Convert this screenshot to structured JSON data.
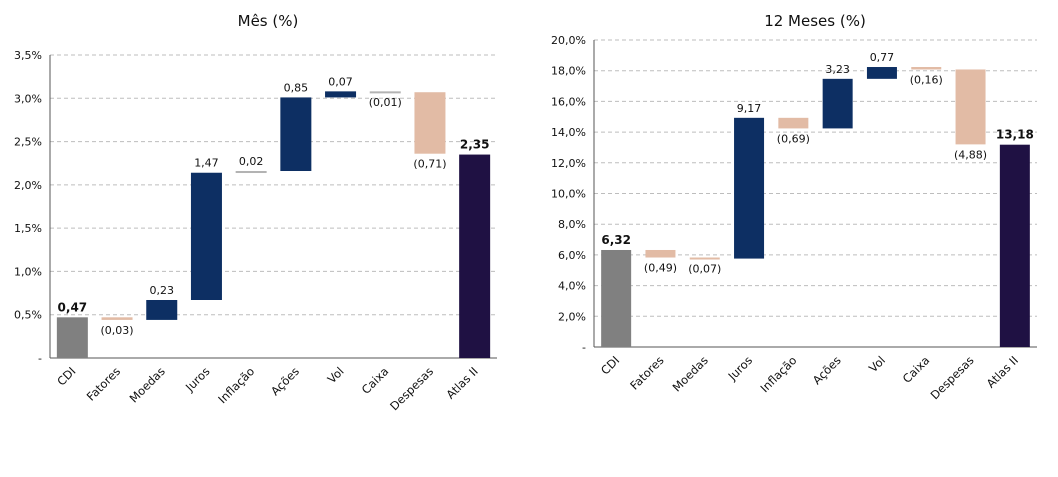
{
  "colors": {
    "base": "#808080",
    "negative": "#e2bba5",
    "positive": "#0d2f63",
    "total": "#1f1143",
    "grid": "#bdbdbd"
  },
  "chart_data": [
    {
      "type": "bar",
      "subtype": "waterfall",
      "title": "Mês (%)",
      "ylim": [
        0,
        3.5
      ],
      "yticks": [
        0,
        0.5,
        1.0,
        1.5,
        2.0,
        2.5,
        3.0,
        3.5
      ],
      "ytick_labels": [
        "-",
        "0,5%",
        "1,0%",
        "1,5%",
        "2,0%",
        "2,5%",
        "3,0%",
        "3,5%"
      ],
      "grid": true,
      "categories": [
        "CDI",
        "Fatores",
        "Moedas",
        "Juros",
        "Inflação",
        "Ações",
        "Vol",
        "Caixa",
        "Despesas",
        "Atlas II"
      ],
      "bars": [
        {
          "kind": "base",
          "start": 0,
          "end": 0.47,
          "label": "0,47"
        },
        {
          "kind": "negative",
          "start": 0.47,
          "end": 0.44,
          "label": "(0,03)"
        },
        {
          "kind": "positive",
          "start": 0.44,
          "end": 0.67,
          "label": "0,23"
        },
        {
          "kind": "positive",
          "start": 0.67,
          "end": 2.14,
          "label": "1,47"
        },
        {
          "kind": "neutral",
          "start": 2.14,
          "end": 2.16,
          "label": "0,02"
        },
        {
          "kind": "positive",
          "start": 2.16,
          "end": 3.01,
          "label": "0,85"
        },
        {
          "kind": "positive",
          "start": 3.01,
          "end": 3.08,
          "label": "0,07"
        },
        {
          "kind": "neutral",
          "start": 3.08,
          "end": 3.07,
          "label": "(0,01)"
        },
        {
          "kind": "negative",
          "start": 3.07,
          "end": 2.36,
          "label": "(0,71)"
        },
        {
          "kind": "total",
          "start": 0,
          "end": 2.35,
          "label": "2,35"
        }
      ]
    },
    {
      "type": "bar",
      "subtype": "waterfall",
      "title": "12 Meses (%)",
      "ylim": [
        0,
        20
      ],
      "yticks": [
        0,
        2,
        4,
        6,
        8,
        10,
        12,
        14,
        16,
        18,
        20
      ],
      "ytick_labels": [
        "-",
        "2,0%",
        "4,0%",
        "6,0%",
        "8,0%",
        "10,0%",
        "12,0%",
        "14,0%",
        "16,0%",
        "18,0%",
        "20,0%"
      ],
      "grid": true,
      "categories": [
        "CDI",
        "Fatores",
        "Moedas",
        "Juros",
        "Inflação",
        "Ações",
        "Vol",
        "Caixa",
        "Despesas",
        "Atlas II"
      ],
      "bars": [
        {
          "kind": "base",
          "start": 0,
          "end": 6.32,
          "label": "6,32"
        },
        {
          "kind": "negative",
          "start": 6.32,
          "end": 5.83,
          "label": "(0,49)"
        },
        {
          "kind": "neutral",
          "start": 5.83,
          "end": 5.76,
          "label": "(0,07)"
        },
        {
          "kind": "positive",
          "start": 5.76,
          "end": 14.93,
          "label": "9,17"
        },
        {
          "kind": "negative",
          "start": 14.93,
          "end": 14.24,
          "label": "(0,69)"
        },
        {
          "kind": "positive",
          "start": 14.24,
          "end": 17.47,
          "label": "3,23"
        },
        {
          "kind": "positive",
          "start": 17.47,
          "end": 18.24,
          "label": "0,77"
        },
        {
          "kind": "neutral",
          "start": 18.24,
          "end": 18.08,
          "label": "(0,16)"
        },
        {
          "kind": "negative",
          "start": 18.08,
          "end": 13.2,
          "label": "(4,88)"
        },
        {
          "kind": "total",
          "start": 0,
          "end": 13.18,
          "label": "13,18"
        }
      ]
    }
  ]
}
